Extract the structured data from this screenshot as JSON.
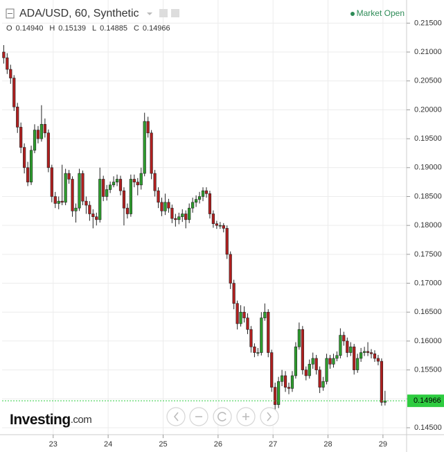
{
  "chart_data": {
    "type": "candlestick",
    "title": "ADA/USD, 60, Synthetic",
    "status": "Market Open",
    "ohlc_header": [
      {
        "name": "O",
        "value": 0.1494,
        "label": "0.14940"
      },
      {
        "name": "H",
        "value": 0.15139,
        "label": "0.15139"
      },
      {
        "name": "L",
        "value": 0.14885,
        "label": "0.14885"
      },
      {
        "name": "C",
        "value": 0.14966,
        "label": "0.14966"
      }
    ],
    "logo": "Investing",
    "logo_suffix": ".com",
    "up_color": "#2e9e2e",
    "down_color": "#b11f1f",
    "last_price_color": "#2ecc40",
    "grid": true,
    "xlim": [
      22.07,
      29.43
    ],
    "xticks": [
      23,
      24,
      25,
      26,
      27,
      28,
      29
    ],
    "ylim": [
      0.1438,
      0.219
    ],
    "yticks": [
      {
        "value": 0.145,
        "label": "0.14500"
      },
      {
        "value": 0.15,
        "label": "0.15000"
      },
      {
        "value": 0.155,
        "label": "0.15500"
      },
      {
        "value": 0.16,
        "label": "0.16000"
      },
      {
        "value": 0.165,
        "label": "0.16500"
      },
      {
        "value": 0.17,
        "label": "0.17000"
      },
      {
        "value": 0.175,
        "label": "0.17500"
      },
      {
        "value": 0.18,
        "label": "0.18000"
      },
      {
        "value": 0.185,
        "label": "0.18500"
      },
      {
        "value": 0.19,
        "label": "0.19000"
      },
      {
        "value": 0.195,
        "label": "0.19500"
      },
      {
        "value": 0.2,
        "label": "0.20000"
      },
      {
        "value": 0.205,
        "label": "0.20500"
      },
      {
        "value": 0.21,
        "label": "0.21000"
      },
      {
        "value": 0.215,
        "label": "0.21500"
      }
    ],
    "x": [
      22.1,
      22.1625,
      22.225,
      22.2875,
      22.35,
      22.4125,
      22.475,
      22.5375,
      22.6,
      22.6625,
      22.725,
      22.7875,
      22.85,
      22.9125,
      22.975,
      23.0375,
      23.1,
      23.1625,
      23.225,
      23.2875,
      23.35,
      23.4125,
      23.475,
      23.5375,
      23.6,
      23.6625,
      23.725,
      23.7875,
      23.85,
      23.9125,
      23.975,
      24.0375,
      24.1,
      24.1625,
      24.225,
      24.2875,
      24.35,
      24.4125,
      24.475,
      24.5375,
      24.6,
      24.6625,
      24.725,
      24.7875,
      24.85,
      24.9125,
      24.975,
      25.0375,
      25.1,
      25.1625,
      25.225,
      25.2875,
      25.35,
      25.4125,
      25.475,
      25.5375,
      25.6,
      25.6625,
      25.725,
      25.7875,
      25.85,
      25.9125,
      25.975,
      26.0375,
      26.1,
      26.1625,
      26.225,
      26.2875,
      26.35,
      26.4125,
      26.475,
      26.5375,
      26.6,
      26.6625,
      26.725,
      26.7875,
      26.85,
      26.9125,
      26.975,
      27.0375,
      27.1,
      27.1625,
      27.225,
      27.2875,
      27.35,
      27.4125,
      27.475,
      27.5375,
      27.6,
      27.6625,
      27.725,
      27.7875,
      27.85,
      27.9125,
      27.975,
      28.0375,
      28.1,
      28.1625,
      28.225,
      28.2875,
      28.35,
      28.4125,
      28.475,
      28.5375,
      28.6,
      28.6625,
      28.725,
      28.7875,
      28.85,
      28.9125,
      28.975,
      29.0375
    ],
    "open": [
      0.21,
      0.209,
      0.207,
      0.2055,
      0.2005,
      0.197,
      0.1935,
      0.19,
      0.1875,
      0.193,
      0.1965,
      0.195,
      0.1975,
      0.196,
      0.19,
      0.185,
      0.1838,
      0.1842,
      0.184,
      0.189,
      0.188,
      0.1825,
      0.183,
      0.189,
      0.1842,
      0.1835,
      0.182,
      0.1815,
      0.181,
      0.188,
      0.185,
      0.1862,
      0.187,
      0.1875,
      0.188,
      0.186,
      0.183,
      0.182,
      0.188,
      0.1875,
      0.187,
      0.189,
      0.198,
      0.196,
      0.189,
      0.186,
      0.184,
      0.1825,
      0.184,
      0.183,
      0.1812,
      0.181,
      0.1815,
      0.182,
      0.181,
      0.183,
      0.184,
      0.1845,
      0.185,
      0.186,
      0.1855,
      0.182,
      0.1803,
      0.18,
      0.18,
      0.1795,
      0.175,
      0.17,
      0.1665,
      0.163,
      0.165,
      0.164,
      0.162,
      0.159,
      0.158,
      0.158,
      0.164,
      0.165,
      0.158,
      0.152,
      0.149,
      0.153,
      0.154,
      0.152,
      0.1518,
      0.154,
      0.159,
      0.162,
      0.155,
      0.154,
      0.156,
      0.157,
      0.155,
      0.152,
      0.153,
      0.157,
      0.156,
      0.157,
      0.1575,
      0.161,
      0.16,
      0.158,
      0.159,
      0.155,
      0.157,
      0.158,
      0.1582,
      0.158,
      0.1578,
      0.157,
      0.1565,
      0.1494
    ],
    "high": [
      0.2112,
      0.2098,
      0.2078,
      0.206,
      0.2012,
      0.1978,
      0.1942,
      0.191,
      0.1938,
      0.1975,
      0.1972,
      0.2008,
      0.1985,
      0.1966,
      0.1905,
      0.1858,
      0.185,
      0.1905,
      0.1898,
      0.1896,
      0.1885,
      0.1838,
      0.1898,
      0.1895,
      0.185,
      0.1842,
      0.1828,
      0.1822,
      0.19,
      0.1886,
      0.187,
      0.1876,
      0.1885,
      0.1888,
      0.1886,
      0.1866,
      0.1838,
      0.1888,
      0.1888,
      0.1882,
      0.19,
      0.1995,
      0.1988,
      0.1965,
      0.1896,
      0.1866,
      0.1848,
      0.1855,
      0.1846,
      0.1836,
      0.182,
      0.1822,
      0.1828,
      0.1826,
      0.1838,
      0.1848,
      0.1852,
      0.1858,
      0.1866,
      0.1866,
      0.186,
      0.1826,
      0.1808,
      0.1806,
      0.1804,
      0.18,
      0.1755,
      0.1706,
      0.167,
      0.1662,
      0.166,
      0.1648,
      0.1626,
      0.1596,
      0.1588,
      0.165,
      0.1665,
      0.1655,
      0.1585,
      0.1528,
      0.1538,
      0.155,
      0.1548,
      0.1528,
      0.1548,
      0.1598,
      0.1632,
      0.1626,
      0.1556,
      0.1568,
      0.158,
      0.1576,
      0.1556,
      0.1538,
      0.1578,
      0.1576,
      0.1578,
      0.1582,
      0.1622,
      0.1616,
      0.1606,
      0.1598,
      0.1595,
      0.1578,
      0.1588,
      0.159,
      0.1598,
      0.1586,
      0.1584,
      0.1576,
      0.157,
      0.15139
    ],
    "low": [
      0.208,
      0.2062,
      0.2045,
      0.1998,
      0.196,
      0.1925,
      0.189,
      0.1868,
      0.187,
      0.1925,
      0.1942,
      0.1945,
      0.1952,
      0.1892,
      0.184,
      0.183,
      0.1828,
      0.1835,
      0.1835,
      0.1872,
      0.1815,
      0.1805,
      0.1825,
      0.1835,
      0.182,
      0.1808,
      0.1795,
      0.18,
      0.1805,
      0.1842,
      0.1843,
      0.1856,
      0.1866,
      0.1868,
      0.1852,
      0.18,
      0.1812,
      0.1815,
      0.1866,
      0.1852,
      0.1862,
      0.1885,
      0.1952,
      0.188,
      0.185,
      0.183,
      0.1816,
      0.1818,
      0.1822,
      0.1804,
      0.1798,
      0.1802,
      0.1806,
      0.1795,
      0.1804,
      0.1822,
      0.1832,
      0.1838,
      0.1842,
      0.1848,
      0.1812,
      0.1796,
      0.1794,
      0.1794,
      0.1788,
      0.1742,
      0.169,
      0.1655,
      0.162,
      0.1625,
      0.1632,
      0.1612,
      0.158,
      0.1572,
      0.1574,
      0.1575,
      0.1635,
      0.1572,
      0.1512,
      0.1478,
      0.1484,
      0.1522,
      0.1512,
      0.1508,
      0.1512,
      0.1535,
      0.1585,
      0.1542,
      0.1532,
      0.1535,
      0.1552,
      0.1542,
      0.151,
      0.1514,
      0.1525,
      0.1552,
      0.1554,
      0.1565,
      0.157,
      0.1592,
      0.1572,
      0.1574,
      0.1542,
      0.1545,
      0.1564,
      0.1574,
      0.1574,
      0.157,
      0.1564,
      0.1558,
      0.1488,
      0.14885
    ],
    "close": [
      0.209,
      0.207,
      0.2055,
      0.2005,
      0.197,
      0.1935,
      0.19,
      0.1875,
      0.193,
      0.1965,
      0.195,
      0.1975,
      0.196,
      0.19,
      0.185,
      0.1838,
      0.1842,
      0.184,
      0.189,
      0.188,
      0.1825,
      0.183,
      0.189,
      0.1842,
      0.1835,
      0.182,
      0.1815,
      0.181,
      0.188,
      0.185,
      0.1862,
      0.187,
      0.1875,
      0.188,
      0.186,
      0.183,
      0.182,
      0.188,
      0.1875,
      0.187,
      0.189,
      0.198,
      0.196,
      0.189,
      0.186,
      0.184,
      0.1825,
      0.184,
      0.183,
      0.1812,
      0.181,
      0.1815,
      0.182,
      0.181,
      0.183,
      0.184,
      0.1845,
      0.185,
      0.186,
      0.1855,
      0.182,
      0.1803,
      0.18,
      0.18,
      0.1795,
      0.175,
      0.17,
      0.1665,
      0.163,
      0.165,
      0.164,
      0.162,
      0.159,
      0.158,
      0.158,
      0.164,
      0.165,
      0.158,
      0.152,
      0.149,
      0.153,
      0.154,
      0.152,
      0.1518,
      0.154,
      0.159,
      0.162,
      0.155,
      0.154,
      0.156,
      0.157,
      0.155,
      0.152,
      0.153,
      0.157,
      0.156,
      0.157,
      0.1575,
      0.161,
      0.16,
      0.158,
      0.159,
      0.155,
      0.157,
      0.158,
      0.1582,
      0.158,
      0.1578,
      0.157,
      0.1565,
      0.1494,
      0.14966
    ]
  }
}
